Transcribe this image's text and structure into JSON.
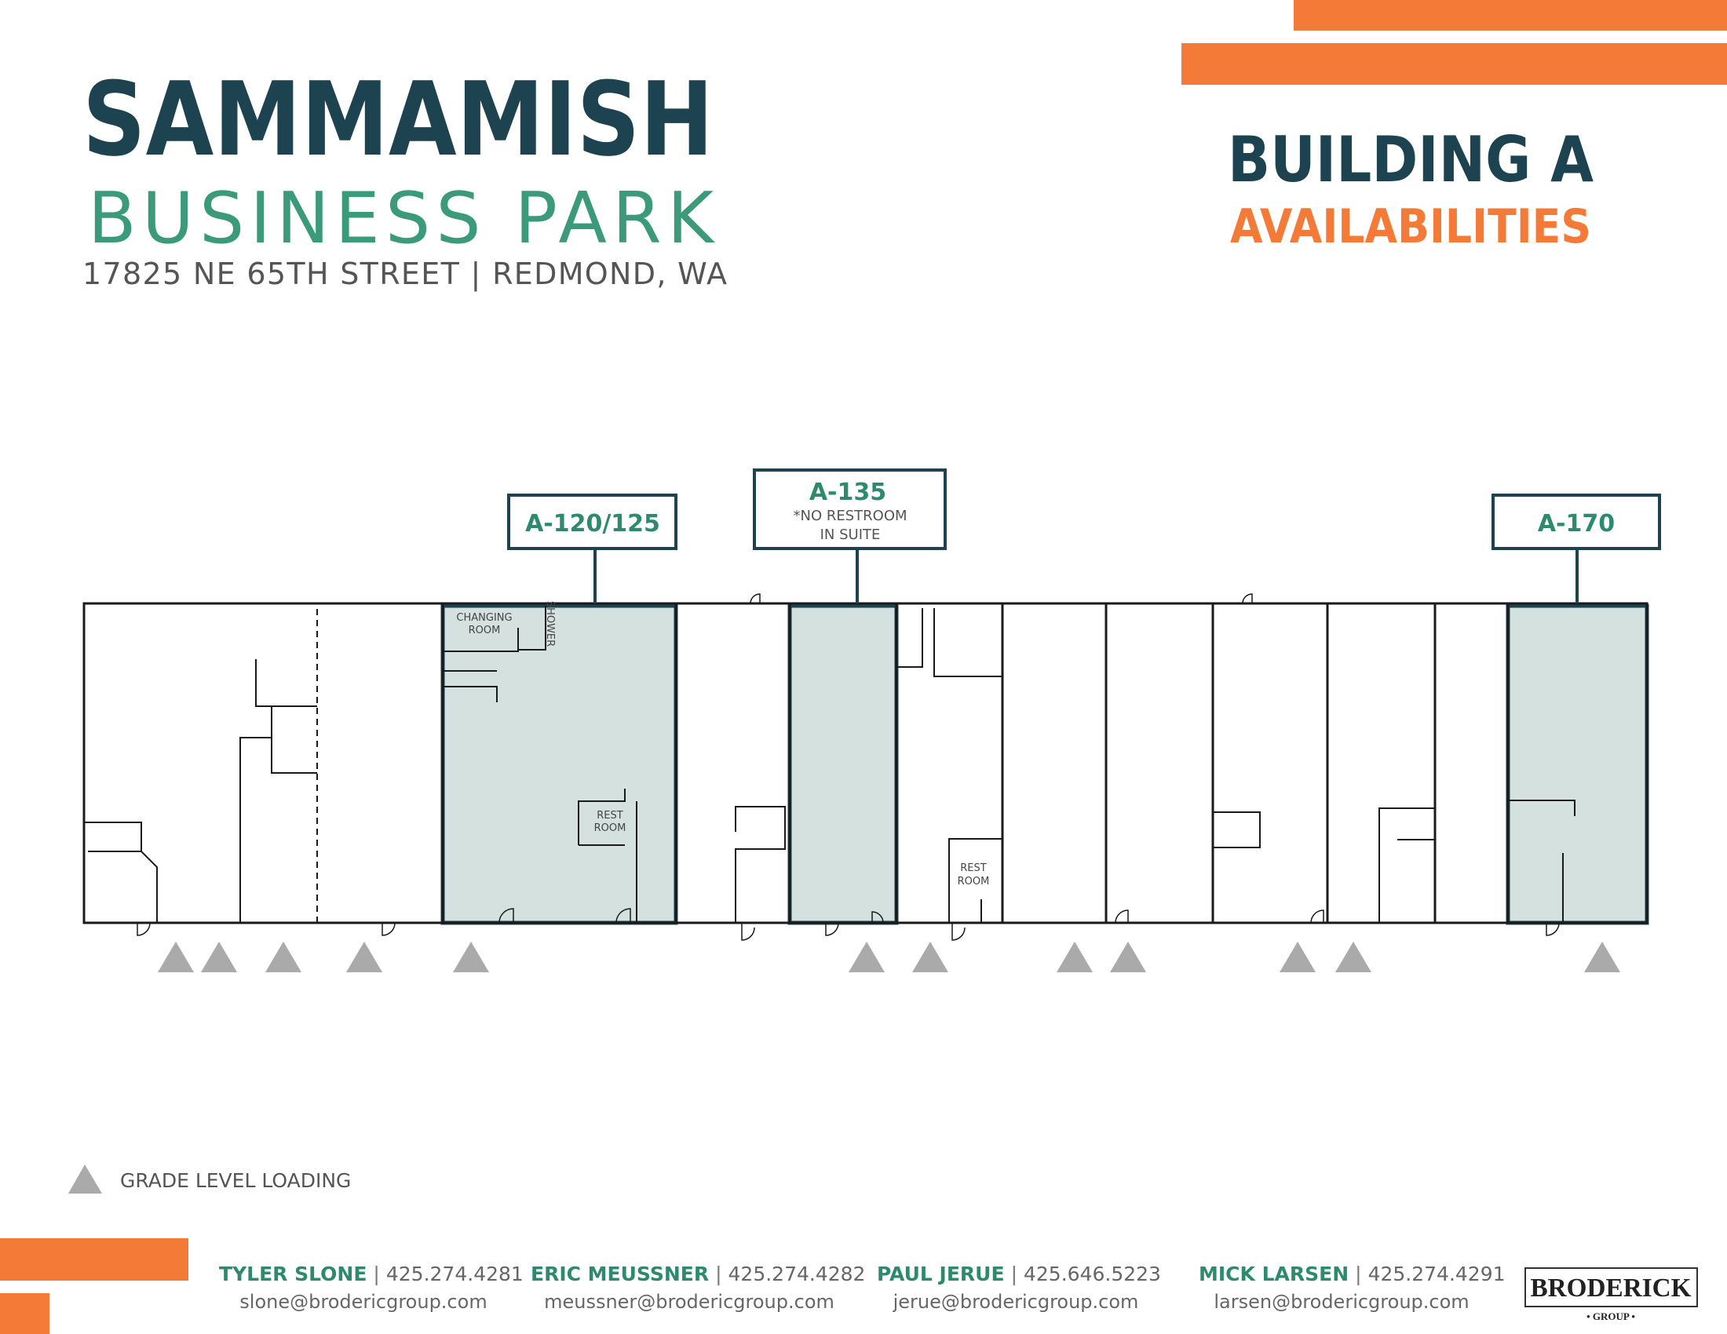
{
  "header": {
    "title": "SAMMAMISH",
    "subtitle": "BUSINESS PARK",
    "address": "17825 NE 65TH STREET | REDMOND, WA",
    "building": "BUILDING A",
    "availability": "AVAILABILITIES"
  },
  "suites": [
    {
      "label": "A-120/125"
    },
    {
      "label": "A-135",
      "note": [
        "*NO RESTROOM",
        "IN SUITE"
      ]
    },
    {
      "label": "A-170"
    }
  ],
  "rooms": [
    {
      "lines": [
        "CHANGING",
        "ROOM"
      ]
    },
    {
      "lines": [
        "SHOWER"
      ]
    },
    {
      "lines": [
        "REST",
        "ROOM"
      ]
    },
    {
      "lines": [
        "REST",
        "ROOM"
      ]
    }
  ],
  "legend": {
    "label": "GRADE LEVEL LOADING"
  },
  "footer": {
    "separator": "|",
    "contacts": [
      {
        "name": "TYLER SLONE",
        "phone": "425.274.4281",
        "email": "slone@brodericgroup.com"
      },
      {
        "name": "ERIC MEUSSNER",
        "phone": "425.274.4282",
        "email": "meussner@brodericgroup.com"
      },
      {
        "name": "PAUL JERUE",
        "phone": "425.646.5223",
        "email": "jerue@brodericgroup.com"
      },
      {
        "name": "MICK LARSEN",
        "phone": "425.274.4291",
        "email": "larsen@brodericgroup.com"
      }
    ]
  },
  "logo": {
    "name": "BRODERICK",
    "sub": "• GROUP •"
  }
}
